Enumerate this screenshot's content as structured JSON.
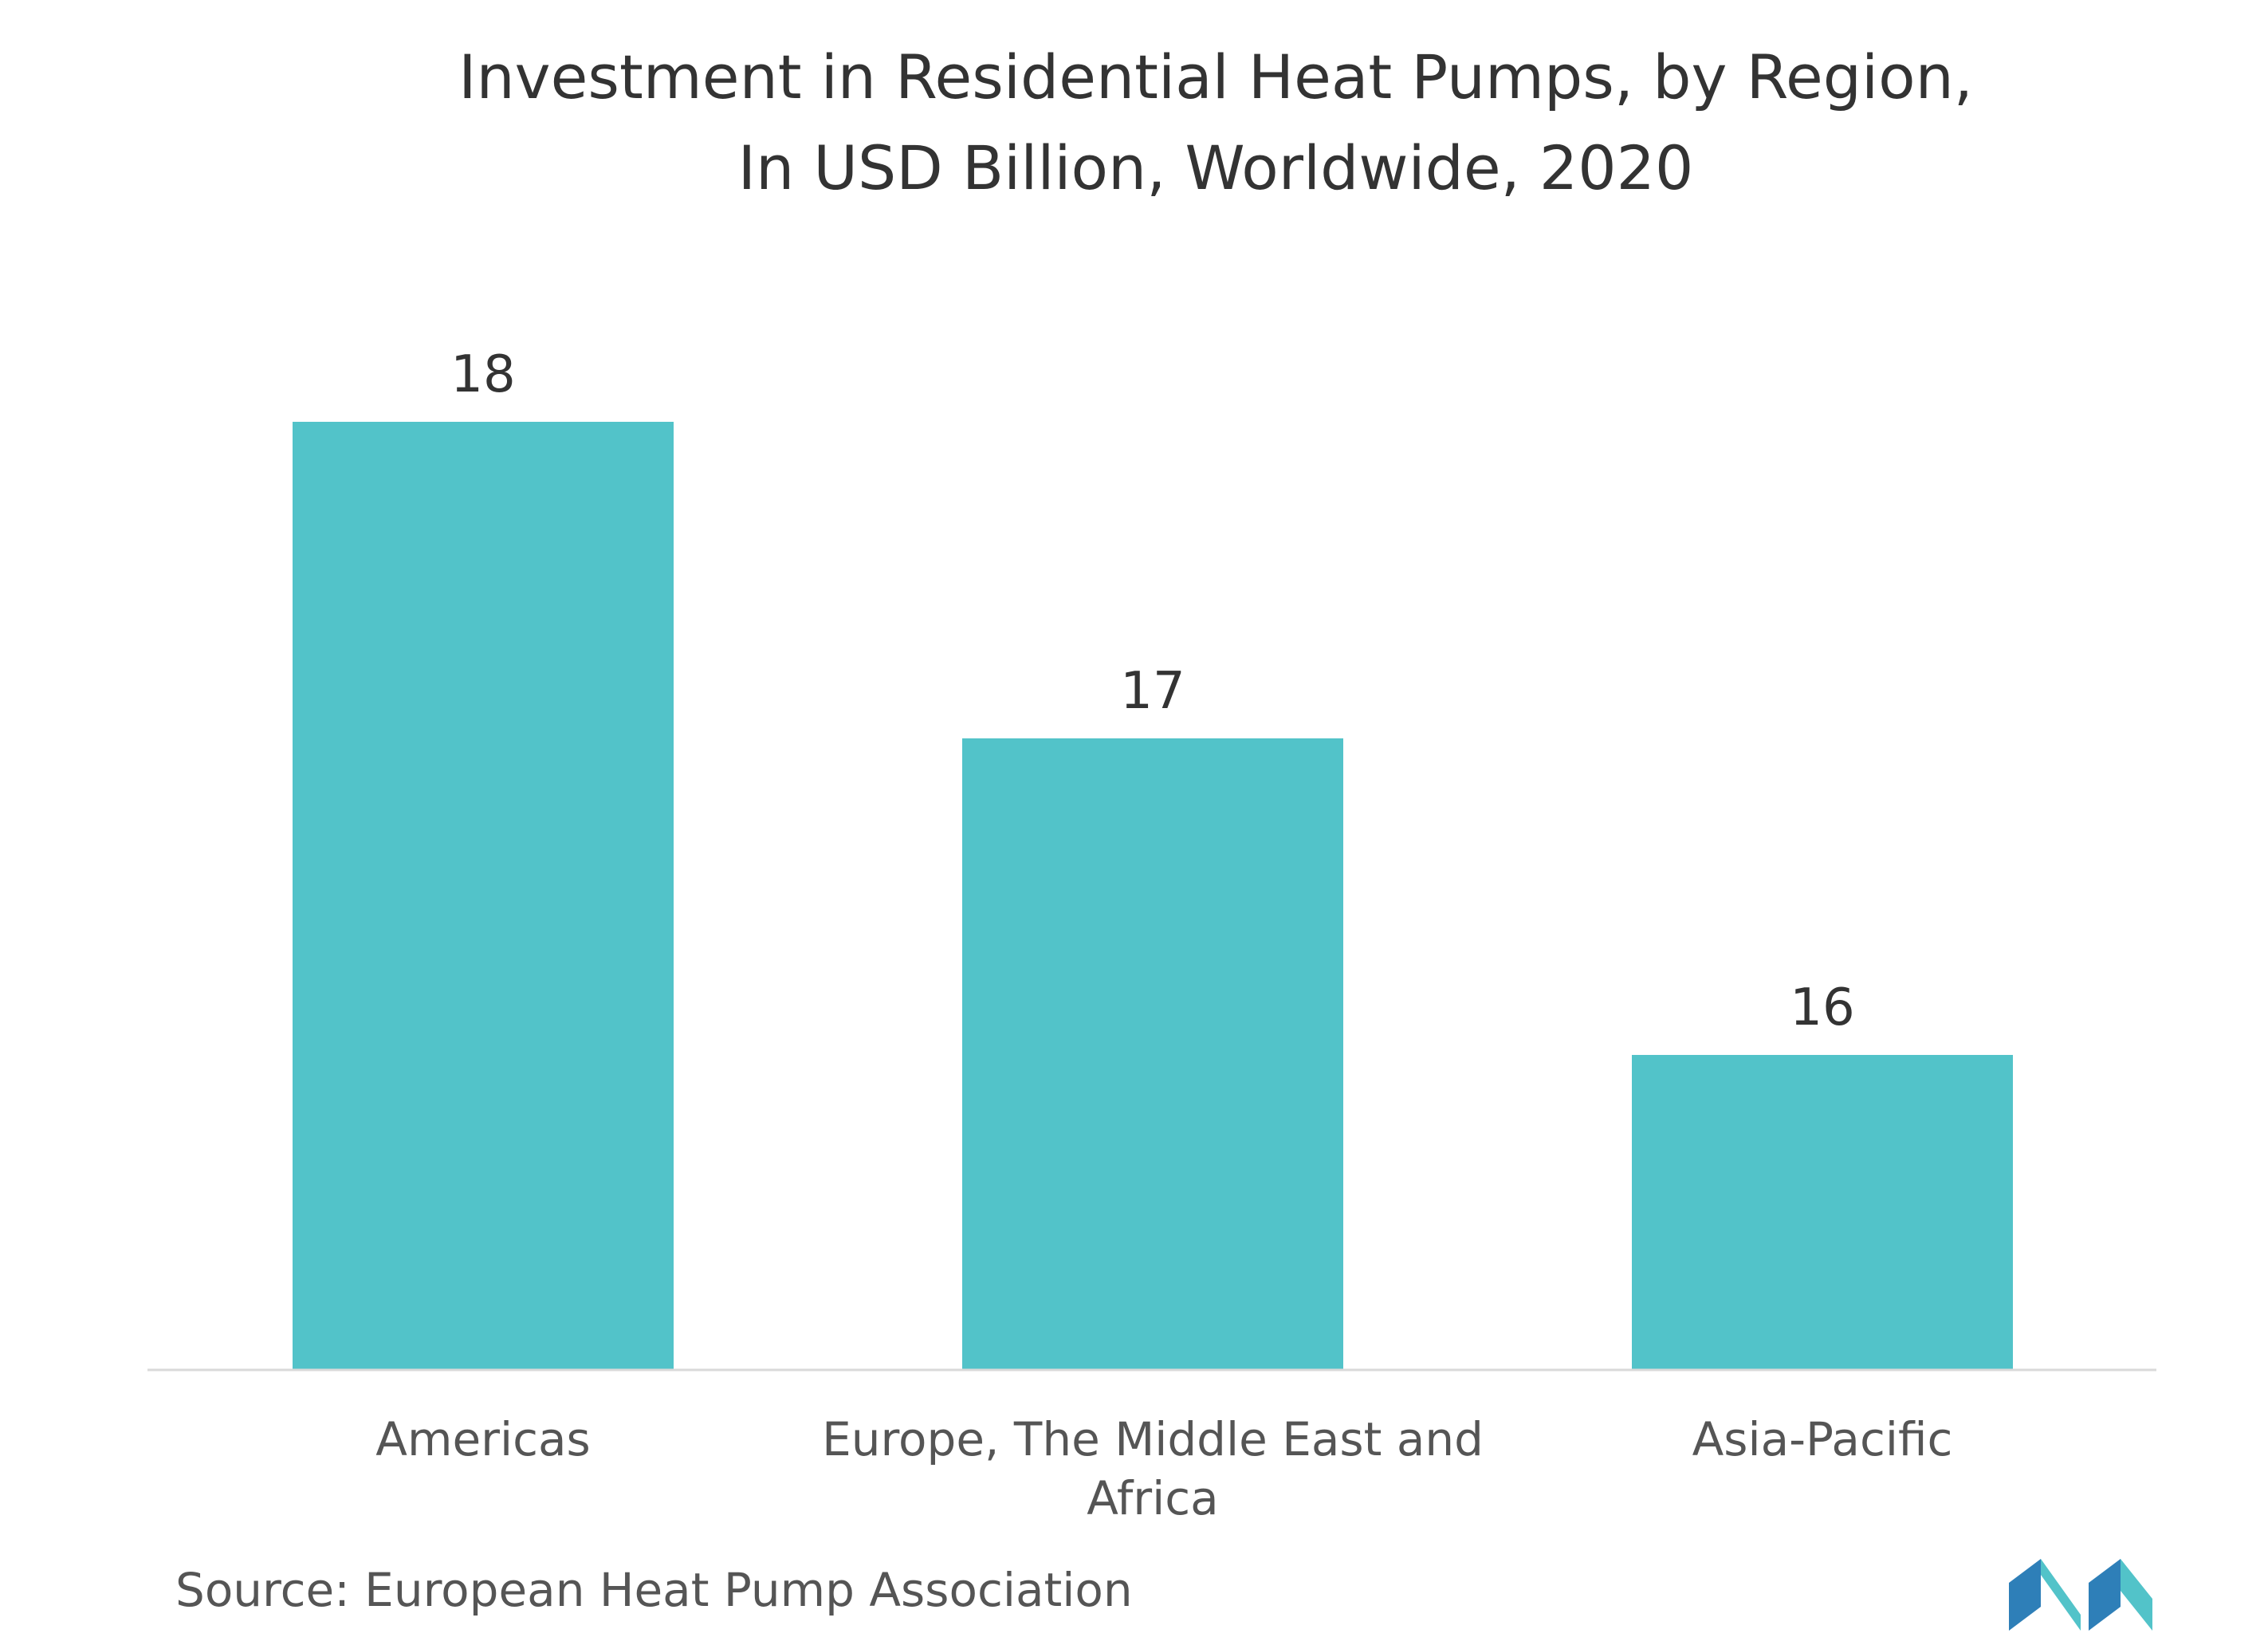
{
  "chart_data": {
    "type": "bar",
    "title": "Investment in Residential Heat Pumps, by Region, In USD Billion, Worldwide, 2020",
    "title_lines": [
      "Investment in Residential Heat Pumps, by Region,",
      "In USD Billion, Worldwide, 2020"
    ],
    "categories": [
      [
        "Americas"
      ],
      [
        "Europe, The Middle East and",
        "Africa"
      ],
      [
        "Asia-Pacific"
      ]
    ],
    "values": [
      18,
      17,
      16
    ],
    "data_labels": [
      "18",
      "17",
      "16"
    ],
    "xlabel": "",
    "ylabel": "",
    "bar_color": "#52c3c9",
    "grid": false,
    "legend": "none"
  },
  "source": "Source: European Heat Pump Association",
  "logo_colors": [
    "#2e7fb8",
    "#52c3c9"
  ]
}
